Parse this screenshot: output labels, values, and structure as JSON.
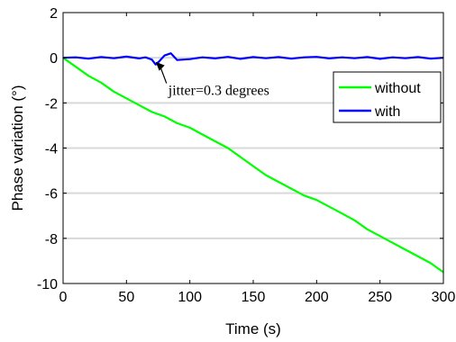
{
  "chart_data": {
    "type": "line",
    "xlabel": "Time (s)",
    "ylabel": "Phase variation (°)",
    "xlim": [
      0,
      300
    ],
    "ylim": [
      -10,
      2
    ],
    "xticks": [
      0,
      50,
      100,
      150,
      200,
      250,
      300
    ],
    "yticks": [
      2,
      0,
      -2,
      -4,
      -6,
      -8,
      -10
    ],
    "grid": "horizontal",
    "legend": "top-right",
    "series": [
      {
        "name": "without",
        "color": "#00ff00",
        "x": [
          0,
          10,
          20,
          30,
          40,
          50,
          60,
          70,
          80,
          90,
          100,
          110,
          120,
          130,
          140,
          150,
          160,
          170,
          180,
          190,
          200,
          210,
          220,
          230,
          240,
          250,
          260,
          270,
          280,
          290,
          300
        ],
        "y": [
          0,
          -0.4,
          -0.8,
          -1.1,
          -1.5,
          -1.8,
          -2.1,
          -2.4,
          -2.6,
          -2.9,
          -3.1,
          -3.4,
          -3.7,
          -4.0,
          -4.4,
          -4.8,
          -5.2,
          -5.5,
          -5.8,
          -6.1,
          -6.3,
          -6.6,
          -6.9,
          -7.2,
          -7.6,
          -7.9,
          -8.2,
          -8.5,
          -8.8,
          -9.1,
          -9.5
        ]
      },
      {
        "name": "with",
        "color": "#0000ff",
        "x": [
          0,
          10,
          20,
          30,
          40,
          50,
          60,
          65,
          70,
          73,
          76,
          80,
          85,
          90,
          100,
          110,
          120,
          130,
          140,
          150,
          160,
          170,
          180,
          190,
          200,
          210,
          220,
          230,
          240,
          250,
          260,
          270,
          280,
          290,
          300
        ],
        "y": [
          0,
          0.02,
          -0.04,
          0.03,
          -0.02,
          0.05,
          -0.03,
          0.02,
          -0.08,
          -0.3,
          -0.15,
          0.1,
          0.2,
          -0.1,
          -0.06,
          0.02,
          -0.03,
          0.04,
          -0.05,
          0.03,
          -0.02,
          0.03,
          -0.04,
          0.02,
          0.04,
          -0.03,
          0.02,
          -0.02,
          0.03,
          -0.05,
          0.02,
          -0.02,
          0.03,
          -0.04,
          0.0
        ]
      }
    ],
    "annotations": [
      {
        "text": "jitter=0.3 degrees",
        "x": 83,
        "y": -1.45,
        "arrow_to_x": 73,
        "arrow_to_y": -0.18
      }
    ]
  },
  "colors": {
    "grid": "#d9d9d9",
    "axis": "#000000",
    "background": "#ffffff"
  }
}
